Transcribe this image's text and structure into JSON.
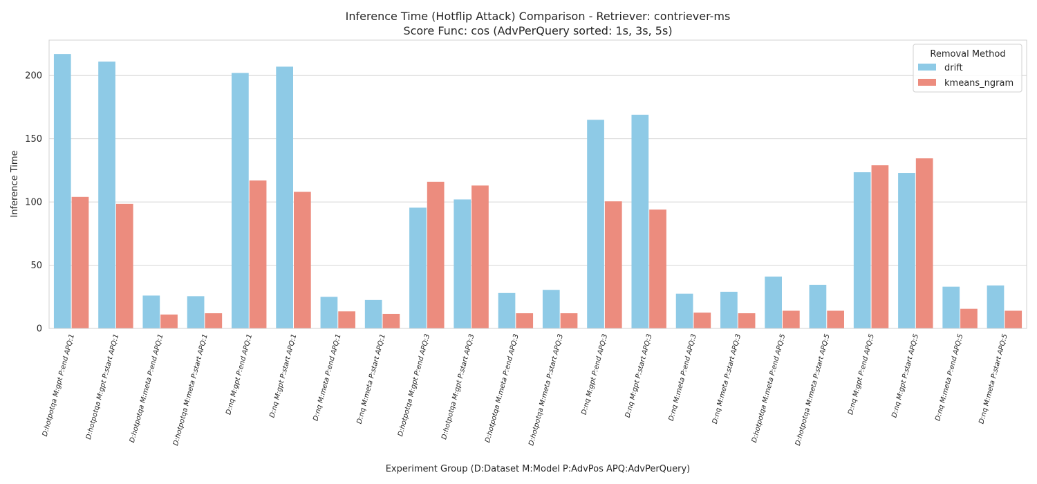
{
  "chart_data": {
    "type": "bar",
    "title_line1": "Inference Time (Hotflip Attack) Comparison - Retriever: contriever-ms",
    "title_line2": "Score Func: cos (AdvPerQuery sorted: 1s, 3s, 5s)",
    "xlabel": "Experiment Group (D:Dataset M:Model P:AdvPos APQ:AdvPerQuery)",
    "ylabel": "Inference Time",
    "ylim": [
      0,
      228
    ],
    "yticks": [
      0,
      50,
      100,
      150,
      200
    ],
    "grid": true,
    "legend": {
      "title": "Removal Method",
      "placement": "top-right"
    },
    "categories": [
      "D:hotpotqa M:gpt P:end APQ:1",
      "D:hotpotqa M:gpt P:start APQ:1",
      "D:hotpotqa M:meta P:end APQ:1",
      "D:hotpotqa M:meta P:start APQ:1",
      "D:nq M:gpt P:end APQ:1",
      "D:nq M:gpt P:start APQ:1",
      "D:nq M:meta P:end APQ:1",
      "D:nq M:meta P:start APQ:1",
      "D:hotpotqa M:gpt P:end APQ:3",
      "D:hotpotqa M:gpt P:start APQ:3",
      "D:hotpotqa M:meta P:end APQ:3",
      "D:hotpotqa M:meta P:start APQ:3",
      "D:nq M:gpt P:end APQ:3",
      "D:nq M:gpt P:start APQ:3",
      "D:nq M:meta P:end APQ:3",
      "D:nq M:meta P:start APQ:3",
      "D:hotpotqa M:meta P:end APQ:5",
      "D:hotpotqa M:meta P:start APQ:5",
      "D:nq M:gpt P:end APQ:5",
      "D:nq M:gpt P:start APQ:5",
      "D:nq M:meta P:end APQ:5",
      "D:nq M:meta P:start APQ:5"
    ],
    "series": [
      {
        "name": "drift",
        "color": "#8ecae6",
        "values": [
          217,
          211,
          26,
          25.5,
          202,
          207,
          25,
          22.5,
          95.5,
          102,
          28,
          30.5,
          165,
          169,
          27.5,
          29,
          41,
          34.5,
          123.5,
          123,
          33,
          34
        ]
      },
      {
        "name": "kmeans_ngram",
        "color": "#ec8c7e",
        "values": [
          104,
          98.5,
          11,
          12,
          117,
          108,
          13.5,
          11.5,
          116,
          113,
          12,
          12,
          100.5,
          94,
          12.5,
          12,
          14,
          14,
          129,
          134.5,
          15.5,
          14
        ]
      }
    ]
  }
}
